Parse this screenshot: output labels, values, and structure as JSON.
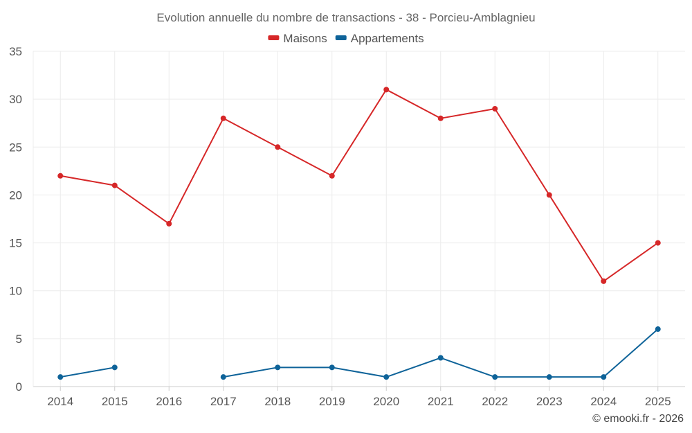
{
  "chart_data": {
    "type": "line",
    "title": "Evolution annuelle du nombre de transactions - 38 - Porcieu-Amblagnieu",
    "categories": [
      "2014",
      "2015",
      "2016",
      "2017",
      "2018",
      "2019",
      "2020",
      "2021",
      "2022",
      "2023",
      "2024",
      "2025"
    ],
    "series": [
      {
        "name": "Maisons",
        "color": "#d62728",
        "values": [
          22,
          21,
          17,
          28,
          25,
          22,
          31,
          28,
          29,
          20,
          11,
          15
        ]
      },
      {
        "name": "Appartements",
        "color": "#0e6399",
        "values": [
          1,
          2,
          null,
          1,
          2,
          2,
          1,
          3,
          1,
          1,
          1,
          6
        ]
      }
    ],
    "ylim": [
      0,
      35
    ],
    "yticks": [
      "0",
      "5",
      "10",
      "15",
      "20",
      "25",
      "30",
      "35"
    ],
    "grid": true,
    "legend_position": "top-center"
  },
  "credit": "© emooki.fr - 2026"
}
